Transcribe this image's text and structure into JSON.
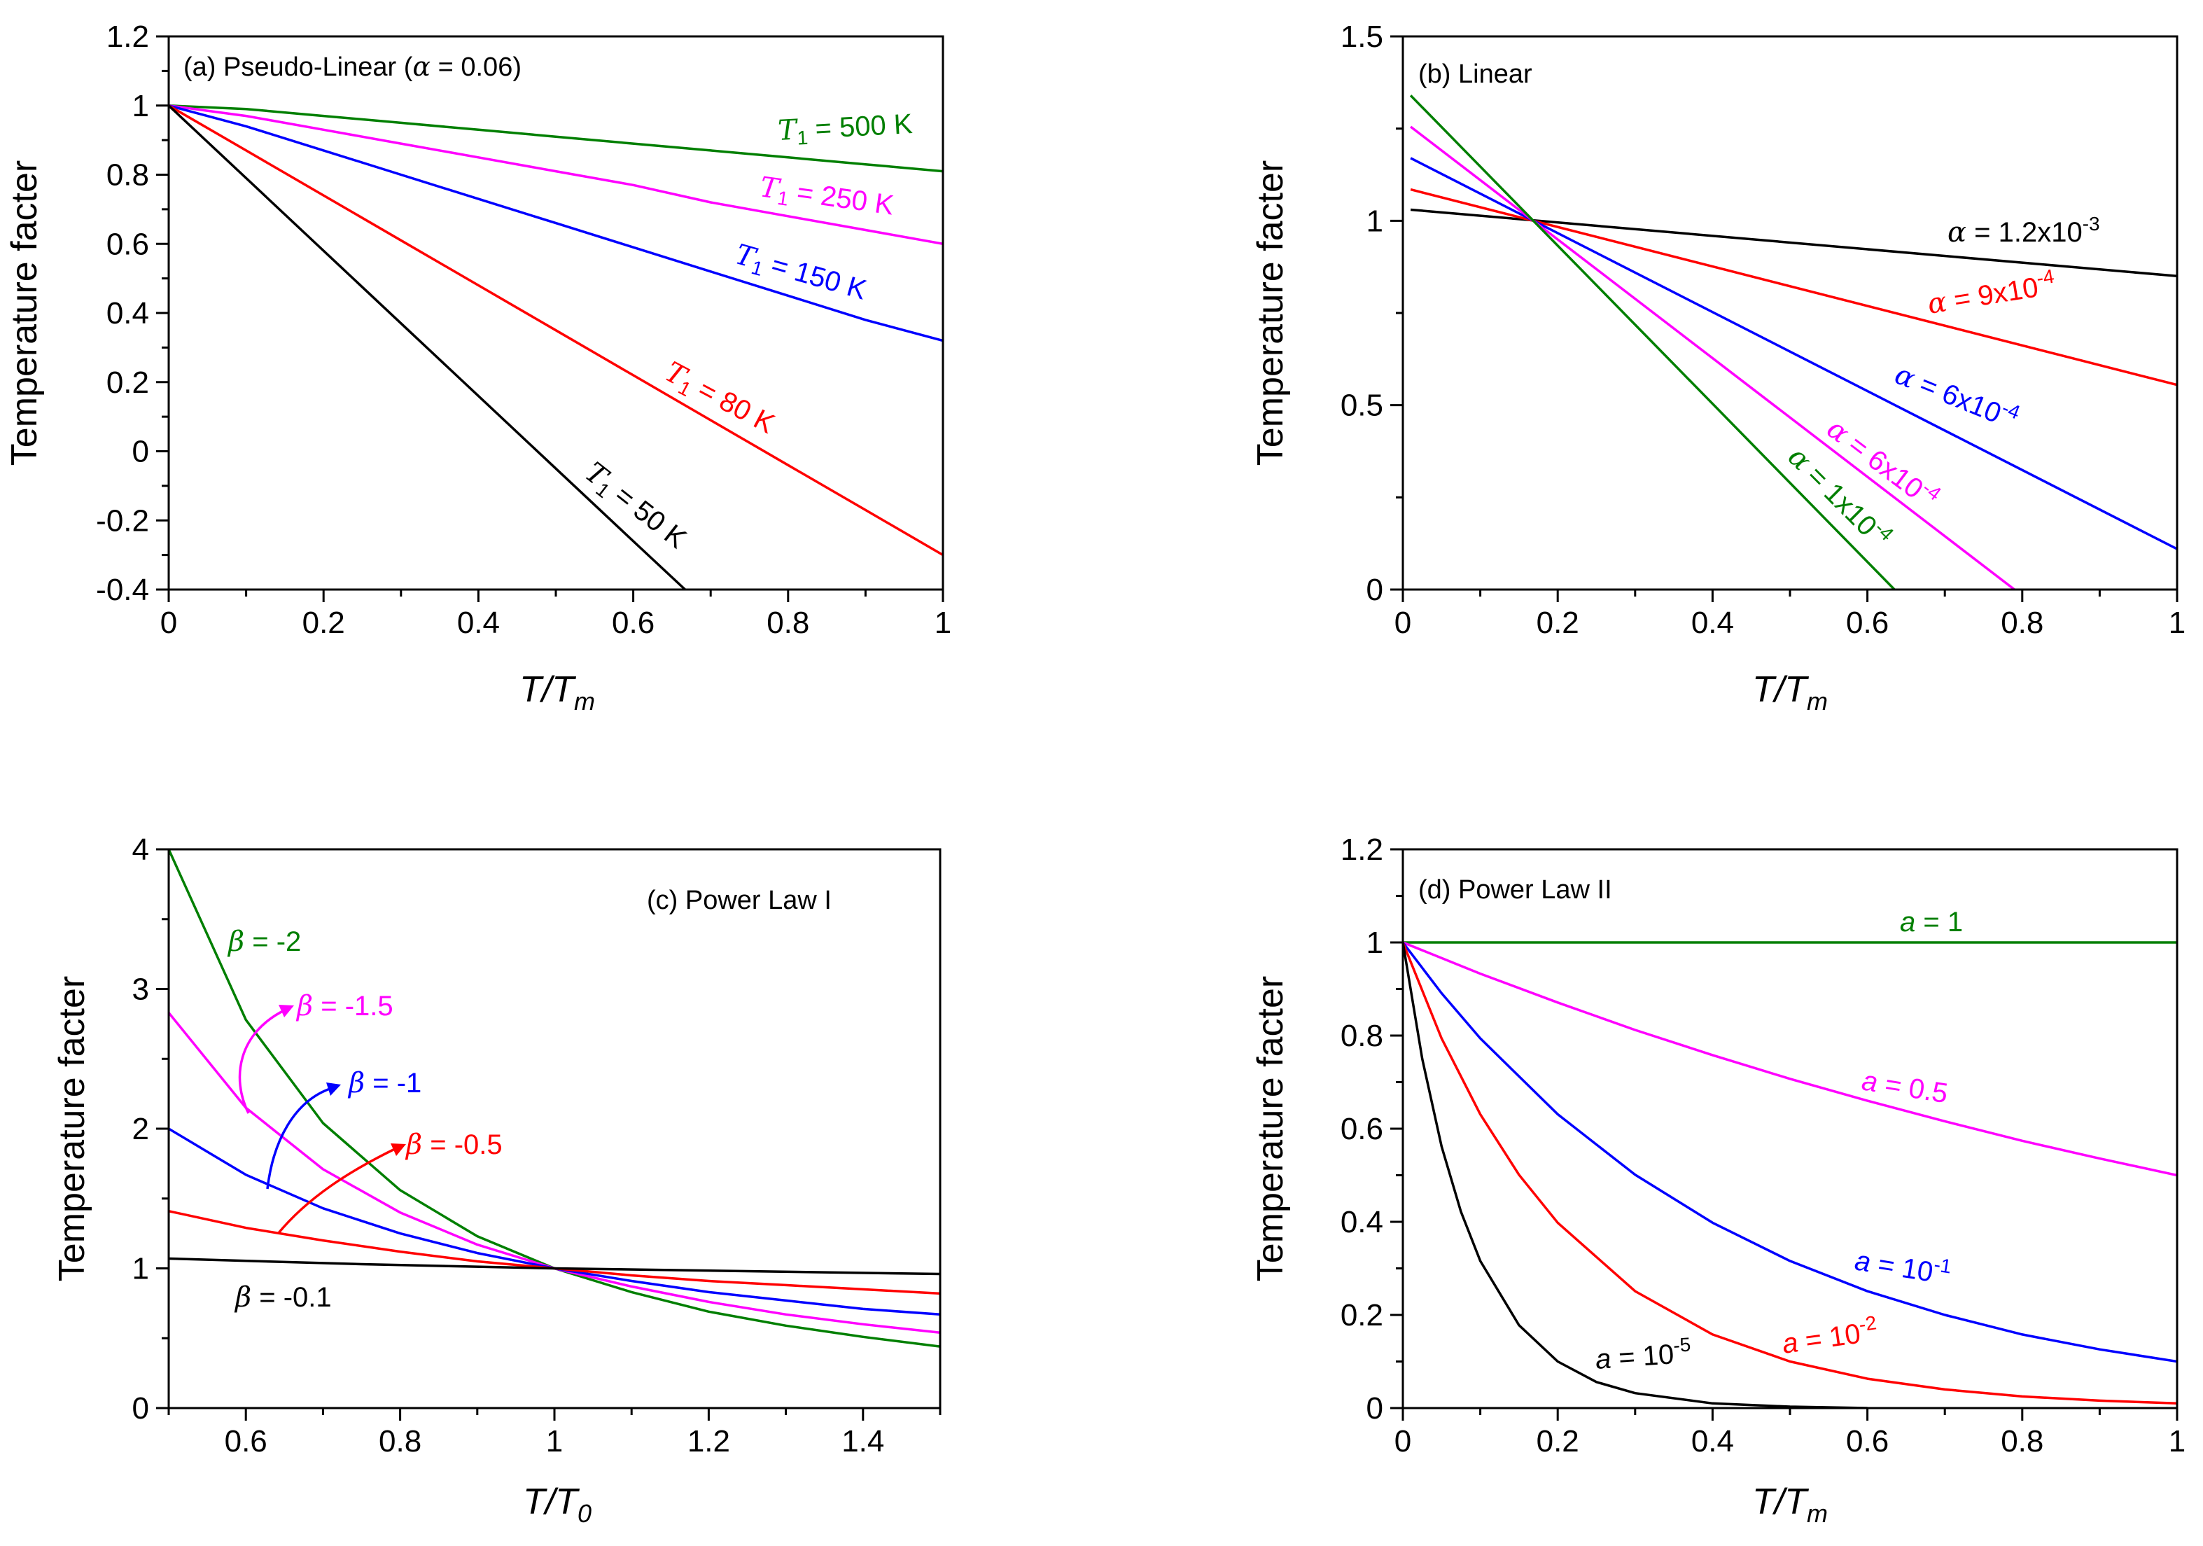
{
  "chart_data": [
    {
      "id": "a",
      "type": "line",
      "title": "(a) Pseudo-Linear (α = 0.06)",
      "xlabel": "T/T_m",
      "xlabel_main": "T/T",
      "xlabel_sub": "m",
      "ylabel": "Temperature facter",
      "xlim": [
        0,
        1
      ],
      "ylim": [
        -0.4,
        1.2
      ],
      "xticks": [
        0,
        0.2,
        0.4,
        0.6,
        0.8,
        1
      ],
      "yticks": [
        -0.4,
        -0.2,
        0,
        0.2,
        0.4,
        0.6,
        0.8,
        1,
        1.2
      ],
      "xtick_labels": [
        "0",
        "0.2",
        "0.4",
        "0.6",
        "0.8",
        "1"
      ],
      "ytick_labels": [
        "-0.4",
        "-0.2",
        "0",
        "0.2",
        "0.4",
        "0.6",
        "0.8",
        "1",
        "1.2"
      ],
      "series": [
        {
          "name": "T1 = 500 K",
          "label": "T₁ = 500 K",
          "color": "#007f00",
          "x": [
            0,
            0.1,
            0.2,
            0.3,
            0.4,
            0.5,
            0.6,
            0.7,
            0.8,
            0.9,
            1.0
          ],
          "y": [
            1.0,
            0.99,
            0.97,
            0.95,
            0.93,
            0.91,
            0.89,
            0.87,
            0.85,
            0.83,
            0.81
          ]
        },
        {
          "name": "T1 = 250 K",
          "label": "T₁ = 250 K",
          "color": "#ff00ff",
          "x": [
            0,
            0.1,
            0.2,
            0.3,
            0.4,
            0.5,
            0.6,
            0.7,
            0.8,
            0.9,
            1.0
          ],
          "y": [
            1.0,
            0.97,
            0.93,
            0.89,
            0.85,
            0.81,
            0.77,
            0.72,
            0.68,
            0.64,
            0.6
          ]
        },
        {
          "name": "T1 = 150 K",
          "label": "T₁ = 150 K",
          "color": "#0000ff",
          "x": [
            0,
            0.1,
            0.2,
            0.3,
            0.4,
            0.5,
            0.6,
            0.7,
            0.8,
            0.9,
            1.0
          ],
          "y": [
            1.0,
            0.94,
            0.87,
            0.8,
            0.73,
            0.66,
            0.59,
            0.52,
            0.45,
            0.38,
            0.32
          ]
        },
        {
          "name": "T1 = 80 K",
          "label": "T₁ = 80 K",
          "color": "#ff0000",
          "x": [
            0,
            0.1,
            0.2,
            0.3,
            0.4,
            0.5,
            0.6,
            0.7,
            0.8,
            0.9,
            1.0
          ],
          "y": [
            1.0,
            0.87,
            0.74,
            0.61,
            0.48,
            0.35,
            0.22,
            0.09,
            -0.04,
            -0.17,
            -0.3
          ]
        },
        {
          "name": "T1 = 50 K",
          "label": "T₁ = 50 K",
          "color": "#000000",
          "x": [
            0,
            0.1,
            0.2,
            0.3,
            0.4,
            0.5,
            0.6,
            0.667
          ],
          "y": [
            1.0,
            0.79,
            0.58,
            0.37,
            0.16,
            -0.05,
            -0.26,
            -0.4
          ]
        }
      ]
    },
    {
      "id": "b",
      "type": "line",
      "title": "(b) Linear",
      "xlabel": "T/T_m",
      "xlabel_main": "T/T",
      "xlabel_sub": "m",
      "ylabel": "Temperature facter",
      "xlim": [
        0,
        1
      ],
      "ylim": [
        0,
        1.5
      ],
      "xticks": [
        0,
        0.2,
        0.4,
        0.6,
        0.8,
        1
      ],
      "yticks": [
        0,
        0.5,
        1,
        1.5
      ],
      "xtick_labels": [
        "0",
        "0.2",
        "0.4",
        "0.6",
        "0.8",
        "1"
      ],
      "ytick_labels": [
        "0",
        "0.5",
        "1",
        "1.5"
      ],
      "series": [
        {
          "name": "alpha = 1.2x10^-3",
          "label": "α = 1.2x10-3",
          "color": "#000000",
          "x": [
            0.01,
            1.0
          ],
          "y": [
            1.03,
            0.85
          ]
        },
        {
          "name": "alpha = 9x10^-4",
          "label": "α = 9x10-4",
          "color": "#ff0000",
          "x": [
            0.01,
            1.0
          ],
          "y": [
            1.085,
            0.555
          ]
        },
        {
          "name": "alpha = 6x10^-4 (blue)",
          "label": "α = 6x10-4",
          "color": "#0000ff",
          "x": [
            0.01,
            1.0
          ],
          "y": [
            1.17,
            0.11
          ]
        },
        {
          "name": "alpha = 6x10^-4 (magenta)",
          "label": "α = 6x10-4",
          "color": "#ff00ff",
          "x": [
            0.01,
            0.79
          ],
          "y": [
            1.255,
            0.0
          ]
        },
        {
          "name": "alpha = 1x10^-4",
          "label": "α = 1x10-4",
          "color": "#007f00",
          "x": [
            0.01,
            0.635
          ],
          "y": [
            1.34,
            0.0
          ]
        }
      ]
    },
    {
      "id": "c",
      "type": "line",
      "title": "(c) Power Law I",
      "xlabel": "T/T_0",
      "xlabel_main": "T/T",
      "xlabel_sub": "0",
      "ylabel": "Temperature facter",
      "xlim": [
        0.5,
        1.5
      ],
      "ylim": [
        0,
        4
      ],
      "xticks": [
        0.6,
        0.8,
        1,
        1.2,
        1.4
      ],
      "yticks": [
        0,
        1,
        2,
        3,
        4
      ],
      "xtick_labels": [
        "0.6",
        "0.8",
        "1",
        "1.2",
        "1.4"
      ],
      "ytick_labels": [
        "0",
        "1",
        "2",
        "3",
        "4"
      ],
      "series": [
        {
          "name": "beta = -2",
          "label": "β = -2",
          "color": "#007f00",
          "x": [
            0.5,
            0.6,
            0.7,
            0.8,
            0.9,
            1.0,
            1.1,
            1.2,
            1.3,
            1.4,
            1.5
          ],
          "y": [
            4.0,
            2.78,
            2.04,
            1.56,
            1.23,
            1.0,
            0.83,
            0.69,
            0.59,
            0.51,
            0.44
          ]
        },
        {
          "name": "beta = -1.5",
          "label": "β = -1.5",
          "color": "#ff00ff",
          "x": [
            0.5,
            0.6,
            0.7,
            0.8,
            0.9,
            1.0,
            1.1,
            1.2,
            1.3,
            1.4,
            1.5
          ],
          "y": [
            2.83,
            2.15,
            1.71,
            1.4,
            1.17,
            1.0,
            0.87,
            0.76,
            0.67,
            0.6,
            0.54
          ]
        },
        {
          "name": "beta = -1",
          "label": "β = -1",
          "color": "#0000ff",
          "x": [
            0.5,
            0.6,
            0.7,
            0.8,
            0.9,
            1.0,
            1.1,
            1.2,
            1.3,
            1.4,
            1.5
          ],
          "y": [
            2.0,
            1.67,
            1.43,
            1.25,
            1.11,
            1.0,
            0.91,
            0.83,
            0.77,
            0.71,
            0.67
          ]
        },
        {
          "name": "beta = -0.5",
          "label": "β = -0.5",
          "color": "#ff0000",
          "x": [
            0.5,
            0.6,
            0.7,
            0.8,
            0.9,
            1.0,
            1.1,
            1.2,
            1.3,
            1.4,
            1.5
          ],
          "y": [
            1.41,
            1.29,
            1.2,
            1.12,
            1.05,
            1.0,
            0.95,
            0.91,
            0.88,
            0.85,
            0.82
          ]
        },
        {
          "name": "beta = -0.1",
          "label": "β = -0.1",
          "color": "#000000",
          "x": [
            0.5,
            0.75,
            1.0,
            1.25,
            1.5
          ],
          "y": [
            1.07,
            1.03,
            1.0,
            0.98,
            0.96
          ]
        }
      ]
    },
    {
      "id": "d",
      "type": "line",
      "title": "(d) Power Law II",
      "xlabel": "T/T_m",
      "xlabel_main": "T/T",
      "xlabel_sub": "m",
      "ylabel": "Temperature facter",
      "xlim": [
        0,
        1
      ],
      "ylim": [
        0,
        1.2
      ],
      "xticks": [
        0,
        0.2,
        0.4,
        0.6,
        0.8,
        1
      ],
      "yticks": [
        0,
        0.2,
        0.4,
        0.6,
        0.8,
        1,
        1.2
      ],
      "xtick_labels": [
        "0",
        "0.2",
        "0.4",
        "0.6",
        "0.8",
        "1"
      ],
      "ytick_labels": [
        "0",
        "0.2",
        "0.4",
        "0.6",
        "0.8",
        "1",
        "1.2"
      ],
      "series": [
        {
          "name": "a = 1",
          "label": "a = 1",
          "color": "#007f00",
          "x": [
            0,
            1.0
          ],
          "y": [
            1.0,
            1.0
          ]
        },
        {
          "name": "a = 0.5",
          "label": "a = 0.5",
          "color": "#ff00ff",
          "x": [
            0,
            0.1,
            0.2,
            0.3,
            0.4,
            0.5,
            0.6,
            0.7,
            0.8,
            0.9,
            1.0
          ],
          "y": [
            1.0,
            0.933,
            0.871,
            0.812,
            0.758,
            0.707,
            0.66,
            0.616,
            0.574,
            0.536,
            0.5
          ]
        },
        {
          "name": "a = 10^-1",
          "label": "a = 10-1",
          "color": "#0000ff",
          "x": [
            0,
            0.05,
            0.1,
            0.2,
            0.3,
            0.4,
            0.5,
            0.6,
            0.7,
            0.8,
            0.9,
            1.0
          ],
          "y": [
            1.0,
            0.891,
            0.794,
            0.631,
            0.501,
            0.398,
            0.316,
            0.251,
            0.2,
            0.158,
            0.126,
            0.1
          ]
        },
        {
          "name": "a = 10^-2",
          "label": "a = 10-2",
          "color": "#ff0000",
          "x": [
            0,
            0.05,
            0.1,
            0.15,
            0.2,
            0.3,
            0.4,
            0.5,
            0.6,
            0.7,
            0.8,
            0.9,
            1.0
          ],
          "y": [
            1.0,
            0.794,
            0.631,
            0.501,
            0.398,
            0.251,
            0.158,
            0.1,
            0.063,
            0.04,
            0.025,
            0.016,
            0.01
          ]
        },
        {
          "name": "a = 10^-5",
          "label": "a = 10-5",
          "color": "#000000",
          "x": [
            0,
            0.025,
            0.05,
            0.075,
            0.1,
            0.15,
            0.2,
            0.25,
            0.3,
            0.4,
            0.5,
            0.6
          ],
          "y": [
            1.0,
            0.75,
            0.562,
            0.422,
            0.316,
            0.178,
            0.1,
            0.056,
            0.032,
            0.01,
            0.003,
            0.0
          ]
        }
      ]
    }
  ],
  "labels": {
    "a": {
      "t500": {
        "main": "T",
        "sub": "1",
        "rest": " = 500 K"
      },
      "t250": {
        "main": "T",
        "sub": "1",
        "rest": " = 250 K"
      },
      "t150": {
        "main": "T",
        "sub": "1",
        "rest": " = 150 K"
      },
      "t80": {
        "main": "T",
        "sub": "1",
        "rest": " = 80 K"
      },
      "t50": {
        "main": "T",
        "sub": "1",
        "rest": " = 50 K"
      },
      "title_prefix": "(a) Pseudo-Linear (",
      "title_greek": "α",
      "title_suffix": " = 0.06)"
    },
    "b": {
      "l1": {
        "greek": "α",
        "rest": " = 1.2x10",
        "exp": "-3"
      },
      "l2": {
        "greek": "α",
        "rest": " = 9x10",
        "exp": "-4"
      },
      "l3": {
        "greek": "α",
        "rest": " = 6x10",
        "exp": "-4"
      },
      "l4": {
        "greek": "α",
        "rest": " = 6x10",
        "exp": "-4"
      },
      "l5": {
        "greek": "α",
        "rest": " = 1x10",
        "exp": "-4"
      }
    },
    "c": {
      "b2": {
        "greek": "β",
        "rest": " =  -2"
      },
      "b15": {
        "greek": "β",
        "rest": " =  -1.5"
      },
      "b1": {
        "greek": "β",
        "rest": " =  -1"
      },
      "b05": {
        "greek": "β",
        "rest": " =  -0.5"
      },
      "b01": {
        "greek": "β",
        "rest": " =  -0.1"
      }
    },
    "d": {
      "a1": {
        "main": "a",
        "rest": " = 1",
        "exp": ""
      },
      "a05": {
        "main": "a",
        "rest": " = 0.5",
        "exp": ""
      },
      "a1e1": {
        "main": "a",
        "rest": " = 10",
        "exp": "-1"
      },
      "a1e2": {
        "main": "a",
        "rest": " = 10",
        "exp": "-2"
      },
      "a1e5": {
        "main": "a",
        "rest": " = 10",
        "exp": "-5"
      }
    }
  }
}
